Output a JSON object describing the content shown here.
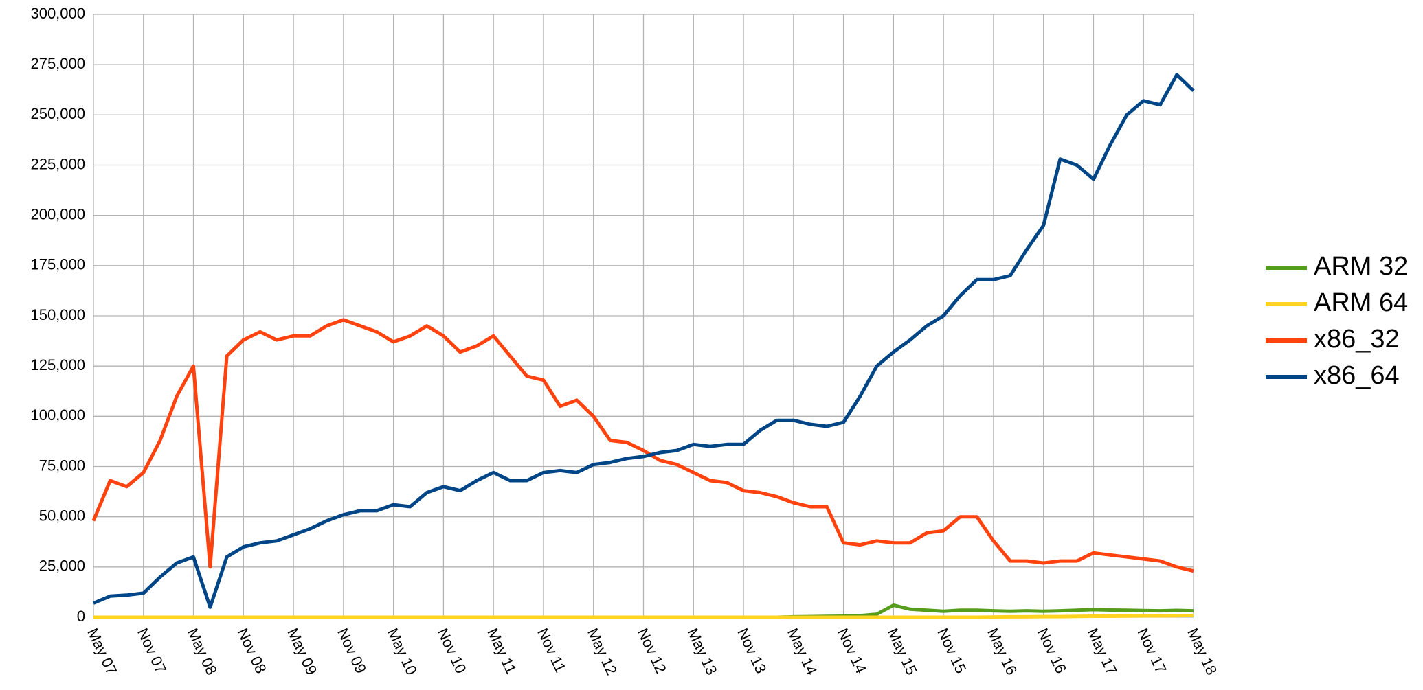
{
  "chart_data": {
    "type": "line",
    "categories": [
      "May 07",
      null,
      null,
      "Nov 07",
      null,
      null,
      "May 08",
      null,
      null,
      "Nov 08",
      null,
      null,
      "May 09",
      null,
      null,
      "Nov 09",
      null,
      null,
      "May 10",
      null,
      null,
      "Nov 10",
      null,
      null,
      "May 11",
      null,
      null,
      "Nov 11",
      null,
      null,
      "May 12",
      null,
      null,
      "Nov 12",
      null,
      null,
      "May 13",
      null,
      null,
      "Nov 13",
      null,
      null,
      "May 14",
      null,
      null,
      "Nov 14",
      null,
      null,
      "May 15",
      null,
      null,
      "Nov 15",
      null,
      null,
      "May 16",
      null,
      null,
      "Nov 16",
      null,
      null,
      "May 17",
      null,
      null,
      "Nov 17",
      null,
      null,
      "May 18"
    ],
    "series": [
      {
        "name": "ARM 32",
        "color": "#579d1c",
        "values": [
          0,
          0,
          0,
          0,
          0,
          0,
          0,
          0,
          0,
          0,
          0,
          0,
          0,
          0,
          0,
          0,
          0,
          0,
          0,
          0,
          0,
          0,
          0,
          0,
          0,
          0,
          0,
          0,
          0,
          0,
          0,
          0,
          0,
          0,
          0,
          0,
          0,
          0,
          0,
          0,
          0,
          0,
          200,
          300,
          400,
          500,
          800,
          1500,
          6000,
          4000,
          3500,
          3000,
          3500,
          3500,
          3200,
          3000,
          3200,
          3000,
          3200,
          3500,
          3800,
          3600,
          3500,
          3300,
          3200,
          3400,
          3200
        ]
      },
      {
        "name": "ARM 64",
        "color": "#ffd320",
        "values": [
          0,
          0,
          0,
          0,
          0,
          0,
          0,
          0,
          0,
          0,
          0,
          0,
          0,
          0,
          0,
          0,
          0,
          0,
          0,
          0,
          0,
          0,
          0,
          0,
          0,
          0,
          0,
          0,
          0,
          0,
          0,
          0,
          0,
          0,
          0,
          0,
          0,
          0,
          0,
          0,
          0,
          0,
          0,
          0,
          0,
          0,
          0,
          0,
          0,
          0,
          0,
          0,
          0,
          0,
          100,
          200,
          200,
          300,
          300,
          400,
          500,
          500,
          600,
          700,
          700,
          800,
          900
        ]
      },
      {
        "name": "x86_32",
        "color": "#ff420e",
        "values": [
          48000,
          68000,
          65000,
          72000,
          88000,
          110000,
          125000,
          25000,
          130000,
          138000,
          142000,
          138000,
          140000,
          140000,
          145000,
          148000,
          145000,
          142000,
          137000,
          140000,
          145000,
          140000,
          132000,
          135000,
          140000,
          130000,
          120000,
          118000,
          105000,
          108000,
          100000,
          88000,
          87000,
          83000,
          78000,
          76000,
          72000,
          68000,
          67000,
          63000,
          62000,
          60000,
          57000,
          55000,
          55000,
          37000,
          36000,
          38000,
          37000,
          37000,
          42000,
          43000,
          50000,
          50000,
          38000,
          28000,
          28000,
          27000,
          28000,
          28000,
          32000,
          31000,
          30000,
          29000,
          28000,
          25000,
          23000
        ]
      },
      {
        "name": "x86_64",
        "color": "#004586",
        "values": [
          7000,
          10500,
          11000,
          12000,
          20000,
          27000,
          30000,
          5000,
          30000,
          35000,
          37000,
          38000,
          41000,
          44000,
          48000,
          51000,
          53000,
          53000,
          56000,
          55000,
          62000,
          65000,
          63000,
          68000,
          72000,
          68000,
          68000,
          72000,
          73000,
          72000,
          76000,
          77000,
          79000,
          80000,
          82000,
          83000,
          86000,
          85000,
          86000,
          86000,
          93000,
          98000,
          98000,
          96000,
          95000,
          97000,
          110000,
          125000,
          132000,
          138000,
          145000,
          150000,
          160000,
          168000,
          168000,
          170000,
          183000,
          195000,
          228000,
          225000,
          218000,
          235000,
          250000,
          257000,
          255000,
          270000,
          262000
        ]
      }
    ],
    "ylim": [
      0,
      300000
    ],
    "yticks": [
      0,
      {
        "value": 25000,
        "label": "25,000"
      },
      {
        "value": 50000,
        "label": "50,000"
      },
      {
        "value": 75000,
        "label": "75,000"
      },
      {
        "value": 100000,
        "label": "100,000"
      },
      {
        "value": 125000,
        "label": "125,000"
      },
      {
        "value": 150000,
        "label": "150,000"
      },
      {
        "value": 175000,
        "label": "175,000"
      },
      {
        "value": 200000,
        "label": "200,000"
      },
      {
        "value": 225000,
        "label": "225,000"
      },
      {
        "value": 250000,
        "label": "250,000"
      },
      {
        "value": 275000,
        "label": "275,000"
      },
      {
        "value": 300000,
        "label": "300,000"
      }
    ],
    "grid": true,
    "legend": "right"
  }
}
